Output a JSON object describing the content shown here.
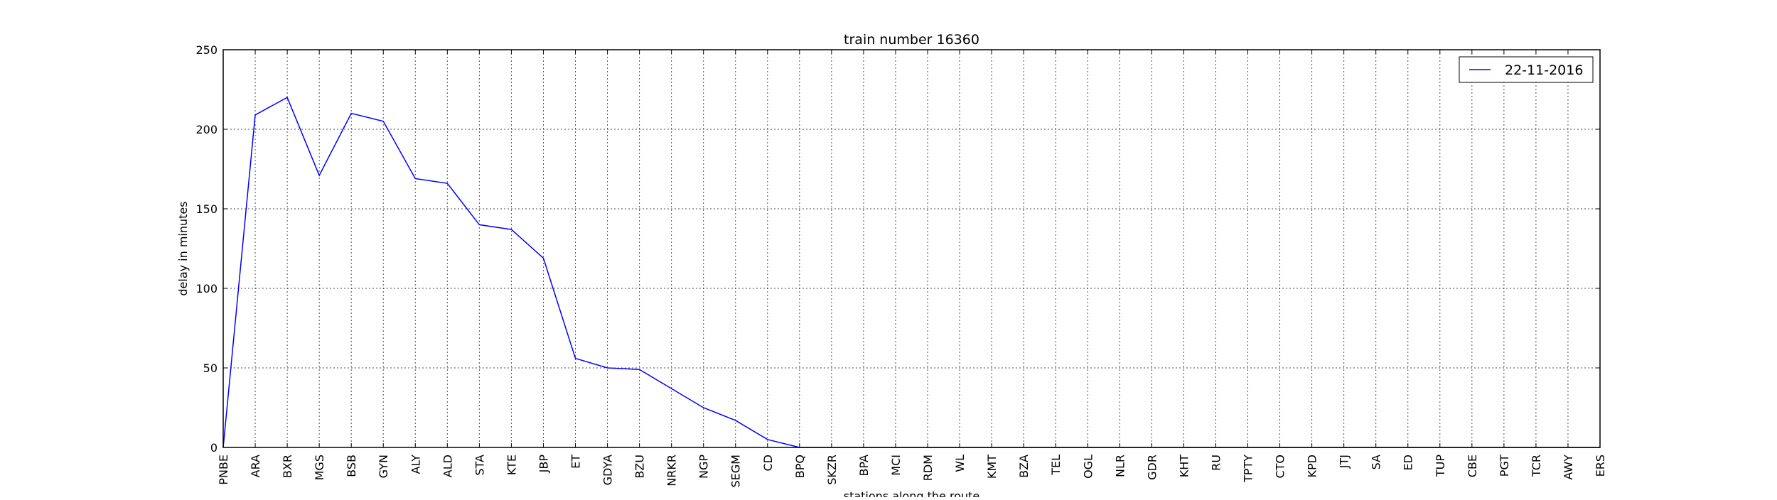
{
  "chart_data": {
    "type": "line",
    "title": "train number 16360",
    "xlabel": "stations along the route",
    "ylabel": "delay in minutes",
    "ylim": [
      0,
      250
    ],
    "yticks": [
      0,
      50,
      100,
      150,
      200,
      250
    ],
    "grid": true,
    "legend_position": "top-right",
    "categories": [
      "PNBE",
      "ARA",
      "BXR",
      "MGS",
      "BSB",
      "GYN",
      "ALY",
      "ALD",
      "STA",
      "KTE",
      "JBP",
      "ET",
      "GDYA",
      "BZU",
      "NRKR",
      "NGP",
      "SEGM",
      "CD",
      "BPQ",
      "SKZR",
      "BPA",
      "MCI",
      "RDM",
      "WL",
      "KMT",
      "BZA",
      "TEL",
      "OGL",
      "NLR",
      "GDR",
      "KHT",
      "RU",
      "TPTY",
      "CTO",
      "KPD",
      "JTJ",
      "SA",
      "ED",
      "TUP",
      "CBE",
      "PGT",
      "TCR",
      "AWY",
      "ERS"
    ],
    "series": [
      {
        "name": "22-11-2016",
        "color": "#0000ff",
        "values": [
          0,
          209,
          220,
          171,
          210,
          205,
          169,
          166,
          140,
          137,
          119,
          56,
          50,
          49,
          37,
          25,
          17,
          5,
          0,
          0,
          0,
          0,
          0,
          0,
          0,
          0,
          0,
          0,
          0,
          0,
          0,
          0,
          0,
          0,
          0,
          0,
          0,
          0,
          0,
          0,
          0,
          0,
          0,
          0
        ]
      }
    ]
  }
}
